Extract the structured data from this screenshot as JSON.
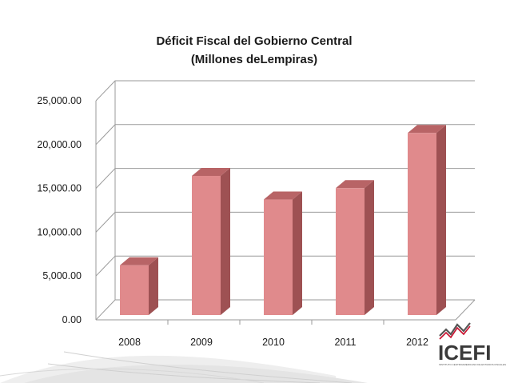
{
  "chart_data": {
    "type": "bar",
    "title": "Déficit Fiscal del Gobierno Central",
    "subtitle": "(Millones deLempiras)",
    "categories": [
      "2008",
      "2009",
      "2010",
      "2011",
      "2012"
    ],
    "values": [
      6500,
      16700,
      14000,
      15300,
      21600
    ],
    "y_ticks": [
      "0.00",
      "5,000.00",
      "10,000.00",
      "15,000.00",
      "20,000.00",
      "25,000.00"
    ],
    "ylim": [
      0,
      25000
    ],
    "grid": true,
    "legend": "none",
    "bar_color": "#e08a8c",
    "bar_side_color": "#9e5153",
    "bar_top_color": "#b86466",
    "style": "3d-column"
  },
  "logo": {
    "text": "ICEFI",
    "subtitle": "INSTITUTO CENTROAMERICANO DE ESTUDIOS FISCALES",
    "accent_color": "#c8102e"
  }
}
